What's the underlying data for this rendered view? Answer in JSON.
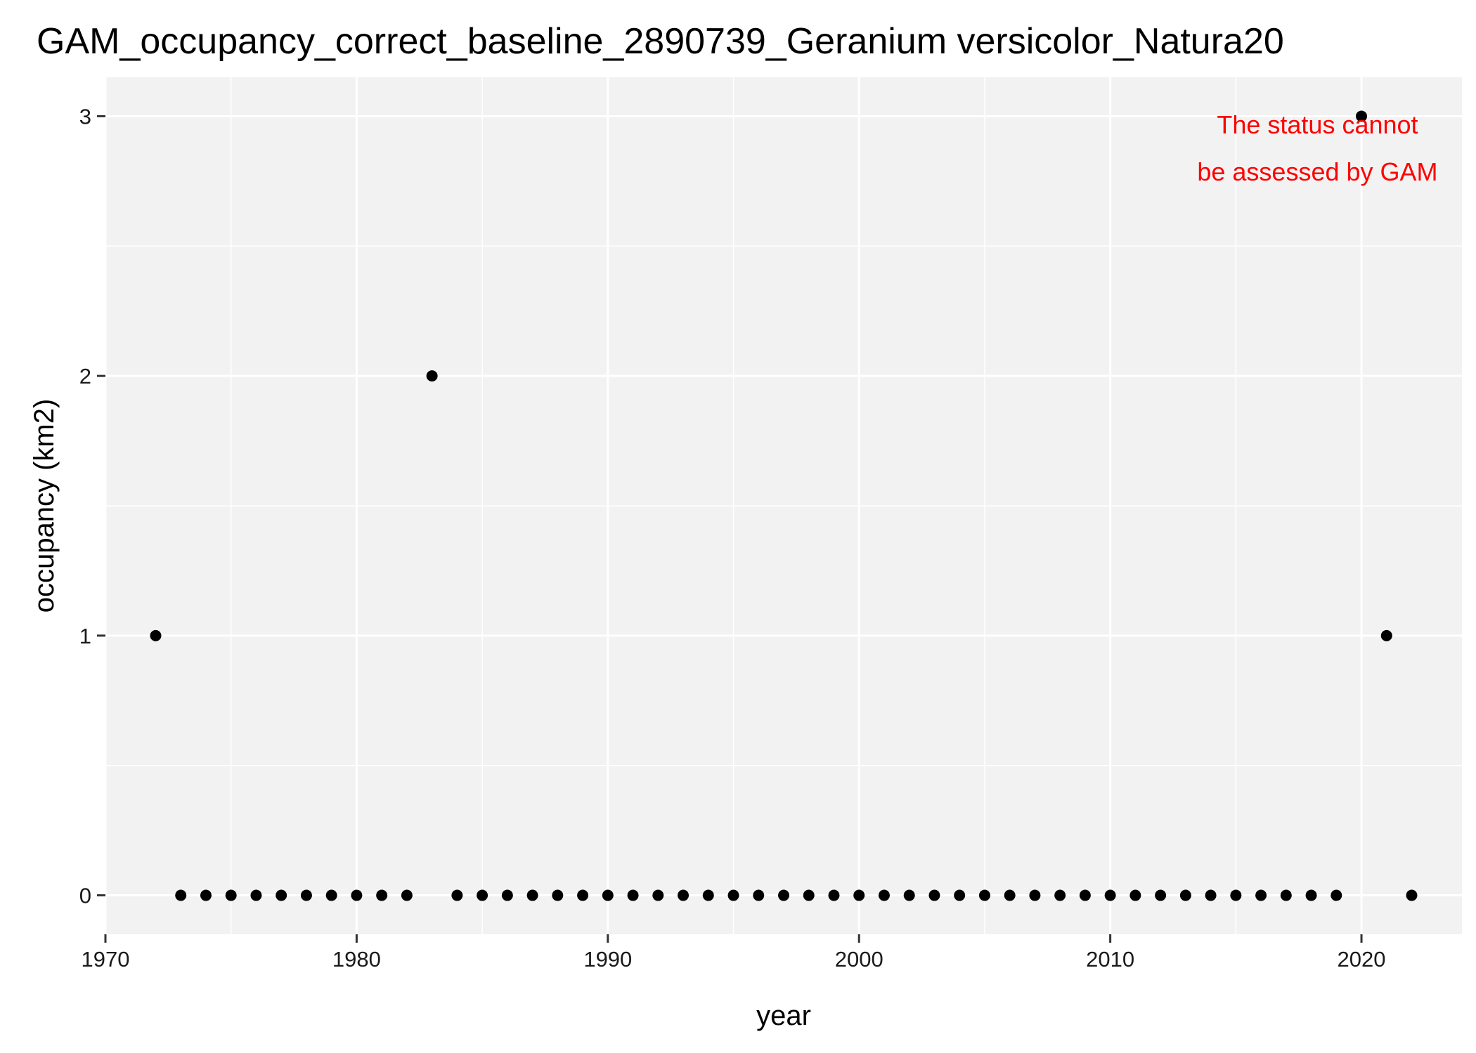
{
  "chart_data": {
    "type": "scatter",
    "title": "GAM_occupancy_correct_baseline_2890739_Geranium versicolor_Natura20",
    "xlabel": "year",
    "ylabel": "occupancy (km2)",
    "xlim": [
      1970,
      2024
    ],
    "ylim": [
      -0.15,
      3.15
    ],
    "x_ticks": [
      1970,
      1980,
      1990,
      2000,
      2010,
      2020
    ],
    "y_ticks": [
      0,
      1,
      2,
      3
    ],
    "grid": true,
    "panel_background": "#f2f2f2",
    "grid_color": "#ffffff",
    "point_color": "#000000",
    "x": [
      1972,
      1973,
      1974,
      1975,
      1976,
      1977,
      1978,
      1979,
      1980,
      1981,
      1982,
      1983,
      1984,
      1985,
      1986,
      1987,
      1988,
      1989,
      1990,
      1991,
      1992,
      1993,
      1994,
      1995,
      1996,
      1997,
      1998,
      1999,
      2000,
      2001,
      2002,
      2003,
      2004,
      2005,
      2006,
      2007,
      2008,
      2009,
      2010,
      2011,
      2012,
      2013,
      2014,
      2015,
      2016,
      2017,
      2018,
      2019,
      2020,
      2021,
      2022
    ],
    "y": [
      1,
      0,
      0,
      0,
      0,
      0,
      0,
      0,
      0,
      0,
      0,
      2,
      0,
      0,
      0,
      0,
      0,
      0,
      0,
      0,
      0,
      0,
      0,
      0,
      0,
      0,
      0,
      0,
      0,
      0,
      0,
      0,
      0,
      0,
      0,
      0,
      0,
      0,
      0,
      0,
      0,
      0,
      0,
      0,
      0,
      0,
      0,
      0,
      3,
      1,
      0
    ],
    "annotation": {
      "lines": [
        "The status cannot",
        "be assessed by GAM"
      ],
      "color": "#ff0000",
      "placement": "top-right"
    }
  }
}
